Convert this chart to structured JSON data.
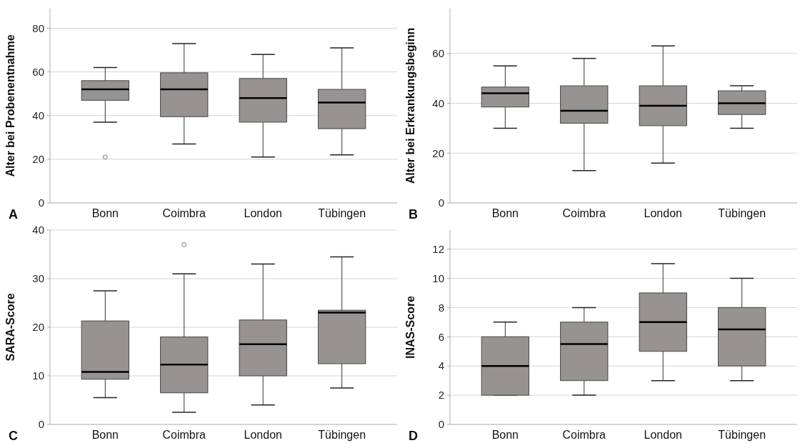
{
  "chart_data": [
    {
      "type": "box",
      "ylabel": "Alter bei Probenentnahme",
      "annotations": [
        "A"
      ],
      "categories": [
        "Bonn",
        "Coimbra",
        "London",
        "Tübingen"
      ],
      "color": "#979393",
      "grid": "y",
      "ylim": [
        0,
        89
      ],
      "yticks": [
        0,
        20,
        40,
        60,
        80
      ],
      "boxes": [
        {
          "low": 37,
          "q1": 47,
          "median": 52,
          "q3": 56,
          "high": 62,
          "outliers": [
            21
          ]
        },
        {
          "low": 27,
          "q1": 39.5,
          "median": 52,
          "q3": 59.6,
          "high": 73
        },
        {
          "low": 21,
          "q1": 37,
          "median": 48,
          "q3": 57,
          "high": 68
        },
        {
          "low": 22,
          "q1": 34,
          "median": 46,
          "q3": 52,
          "high": 71
        }
      ]
    },
    {
      "type": "box",
      "ylabel": "Alter bei Erkrankungsbeginn",
      "annotations": [
        "B"
      ],
      "categories": [
        "Bonn",
        "Coimbra",
        "London",
        "Tübingen"
      ],
      "color": "#979393",
      "grid": "y",
      "ylim": [
        0,
        78
      ],
      "yticks": [
        0,
        20,
        40,
        60
      ],
      "boxes": [
        {
          "low": 30,
          "q1": 38.5,
          "median": 44,
          "q3": 46.5,
          "high": 55
        },
        {
          "low": 13,
          "q1": 32,
          "median": 37,
          "q3": 47,
          "high": 58
        },
        {
          "low": 16,
          "q1": 31,
          "median": 39,
          "q3": 47,
          "high": 63
        },
        {
          "low": 30,
          "q1": 35.5,
          "median": 40,
          "q3": 45,
          "high": 47
        }
      ]
    },
    {
      "type": "box",
      "ylabel": "SARA-Score",
      "annotations": [
        "C"
      ],
      "categories": [
        "Bonn",
        "Coimbra",
        "London",
        "Tübingen"
      ],
      "color": "#979393",
      "grid": "y",
      "ylim": [
        0,
        40
      ],
      "yticks": [
        0,
        10,
        20,
        30,
        40
      ],
      "boxes": [
        {
          "low": 5.5,
          "q1": 9.3,
          "median": 10.8,
          "q3": 21.3,
          "high": 27.5
        },
        {
          "low": 2.5,
          "q1": 6.5,
          "median": 12.3,
          "q3": 18,
          "high": 31,
          "outliers": [
            37
          ]
        },
        {
          "low": 4,
          "q1": 10,
          "median": 16.5,
          "q3": 21.5,
          "high": 33
        },
        {
          "low": 7.5,
          "q1": 12.5,
          "median": 23,
          "q3": 23.5,
          "high": 34.5
        }
      ]
    },
    {
      "type": "box",
      "ylabel": "INAS-Score",
      "annotations": [
        "D"
      ],
      "categories": [
        "Bonn",
        "Coimbra",
        "London",
        "Tübingen"
      ],
      "color": "#979393",
      "grid": "y",
      "ylim": [
        0,
        13.3
      ],
      "yticks": [
        0,
        2,
        4,
        6,
        8,
        10,
        12
      ],
      "boxes": [
        {
          "low": 2,
          "q1": 2,
          "median": 4,
          "q3": 6,
          "high": 7
        },
        {
          "low": 2,
          "q1": 3,
          "median": 5.5,
          "q3": 7,
          "high": 8
        },
        {
          "low": 3,
          "q1": 5,
          "median": 7,
          "q3": 9,
          "high": 11
        },
        {
          "low": 3,
          "q1": 4,
          "median": 6.5,
          "q3": 8,
          "high": 10
        }
      ]
    }
  ]
}
